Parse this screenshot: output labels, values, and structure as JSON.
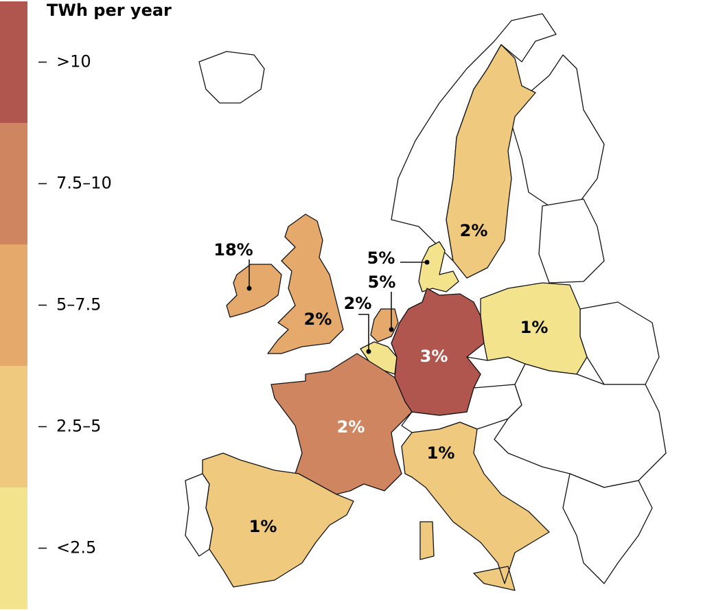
{
  "legend": {
    "title": "TWh per year",
    "bins": [
      {
        "label": ">10",
        "color": "#b0564e"
      },
      {
        "label": "7.5–10",
        "color": "#cf8660"
      },
      {
        "label": "5–7.5",
        "color": "#e6a96c"
      },
      {
        "label": "2.5–5",
        "color": "#efc97e"
      },
      {
        "label": "<2.5",
        "color": "#f2e38c"
      }
    ]
  },
  "regions": [
    {
      "label": "18%",
      "color": "#e6a96c",
      "text_color": "#000000"
    },
    {
      "label": "2%",
      "color": "#e6a96c",
      "text_color": "#000000"
    },
    {
      "label": "5%",
      "color": "#e6a96c",
      "text_color": "#000000"
    },
    {
      "label": "2%",
      "color": "#f2e38c",
      "text_color": "#000000"
    },
    {
      "label": "5%",
      "color": "#f2e38c",
      "text_color": "#000000"
    },
    {
      "label": "3%",
      "color": "#b0564e",
      "text_color": "#ffffff"
    },
    {
      "label": "2%",
      "color": "#cf8660",
      "text_color": "#ffffff"
    },
    {
      "label": "1%",
      "color": "#efc97e",
      "text_color": "#000000"
    },
    {
      "label": "1%",
      "color": "#efc97e",
      "text_color": "#000000"
    },
    {
      "label": "2%",
      "color": "#efc97e",
      "text_color": "#000000"
    },
    {
      "label": "1%",
      "color": "#f2e38c",
      "text_color": "#000000"
    }
  ]
}
